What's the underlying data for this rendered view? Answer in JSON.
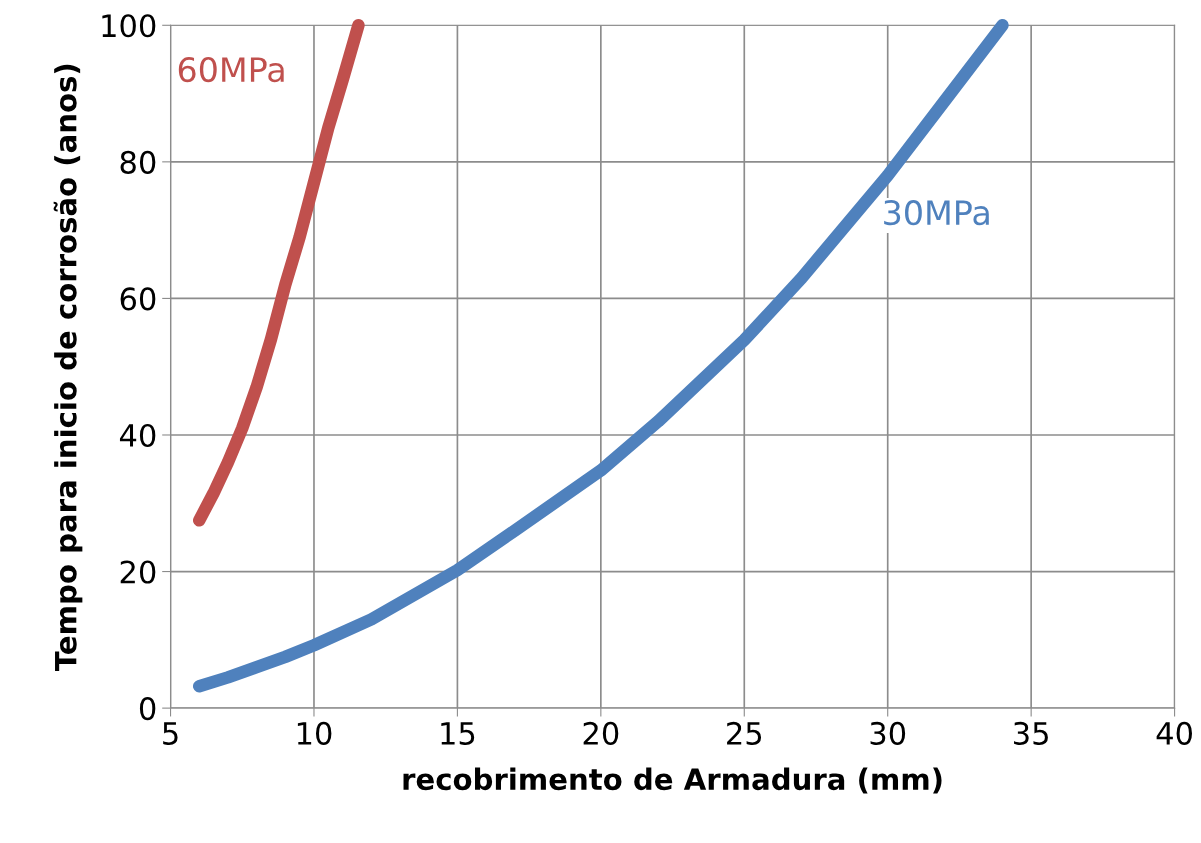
{
  "chart_data": {
    "type": "line",
    "xlabel": "recobrimento de Armadura (mm)",
    "ylabel": "Tempo para inicio de corrosão (anos)",
    "xlim": [
      5,
      40
    ],
    "xticks": [
      5,
      10,
      15,
      20,
      25,
      30,
      35,
      40
    ],
    "ylim": [
      0,
      100
    ],
    "yticks": [
      0,
      20,
      40,
      60,
      80,
      100
    ],
    "grid": true,
    "legend": false,
    "line_style": "solid",
    "series": [
      {
        "name": "60MPa",
        "color": "#c0504d",
        "x": [
          6.0,
          6.5,
          7.0,
          7.5,
          8.0,
          8.5,
          9.0,
          9.5,
          10.0,
          10.5,
          11.0,
          11.55
        ],
        "values": [
          27.5,
          31.5,
          36,
          41,
          47,
          54,
          62,
          69,
          77,
          85,
          92,
          100
        ]
      },
      {
        "name": "30MPa",
        "color": "#4f81bd",
        "x": [
          6,
          7,
          8,
          9,
          10,
          12,
          15,
          17,
          20,
          22,
          25,
          27,
          30,
          32,
          34
        ],
        "values": [
          3.2,
          4.5,
          6,
          7.5,
          9.2,
          13,
          20.2,
          26,
          34.8,
          42,
          53.9,
          63,
          78,
          89,
          100
        ]
      }
    ]
  }
}
